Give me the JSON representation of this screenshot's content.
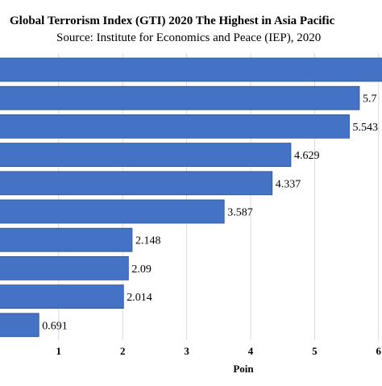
{
  "chart_data": {
    "type": "bar",
    "orientation": "horizontal",
    "title": "Global Terrorism Index (GTI) 2020 The Highest in Asia Pacific",
    "subtitle": "Source: Institute for Economics and Peace (IEP), 2020",
    "xlabel": "Poin",
    "ylabel": "",
    "xlim": [
      0,
      6
    ],
    "xticks": [
      "1",
      "2",
      "3",
      "4",
      "5",
      "6"
    ],
    "grid": true,
    "color": "#4472c4",
    "values": [
      6.1,
      5.7,
      5.543,
      4.629,
      4.337,
      3.587,
      2.148,
      2.09,
      2.014,
      0.691
    ],
    "data_labels": [
      "",
      "5.7",
      "5.543",
      "4.629",
      "4.337",
      "3.587",
      "2.148",
      "2.09",
      "2.014",
      "0.691"
    ]
  }
}
